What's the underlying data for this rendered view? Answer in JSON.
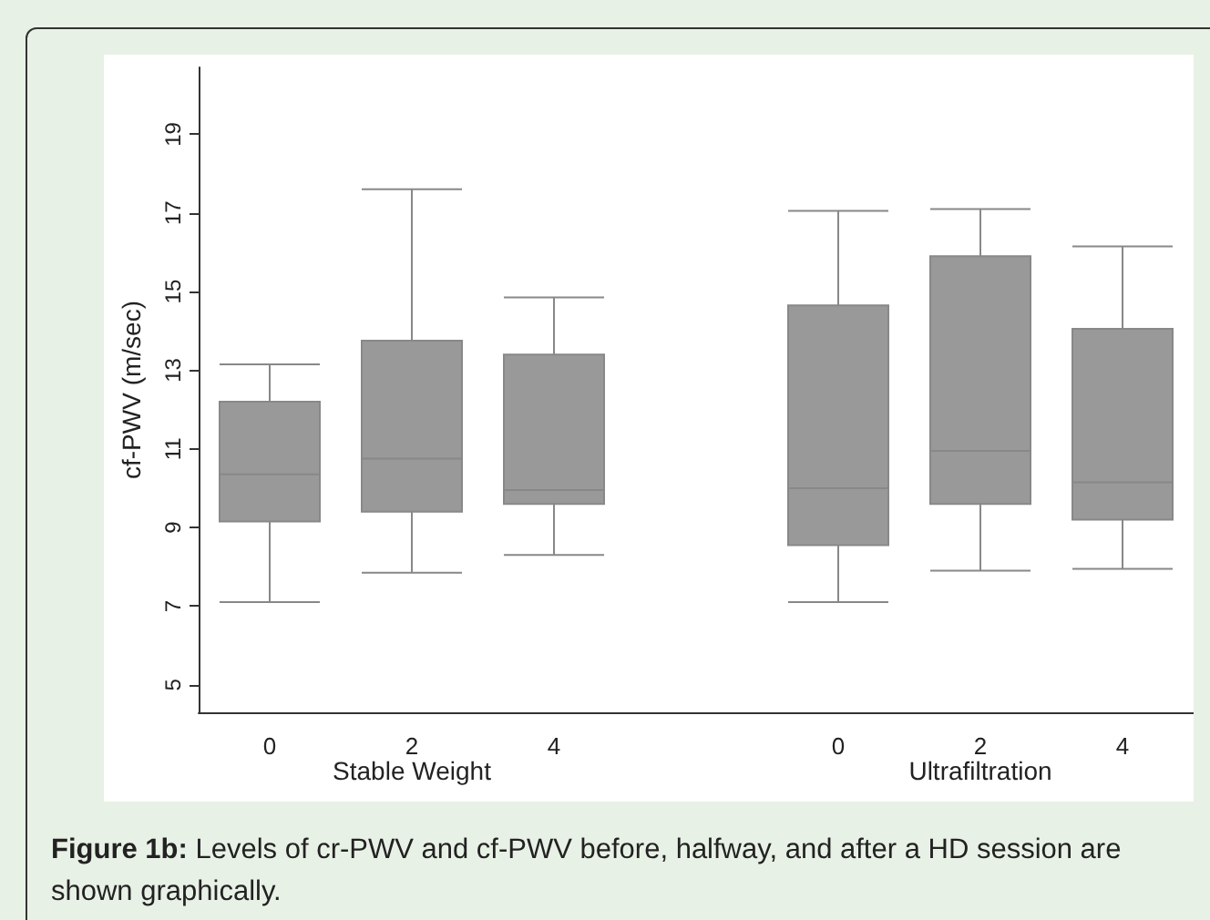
{
  "chart_data": {
    "type": "box",
    "ylabel": "cf-PWV (m/sec)",
    "categories": [
      "0",
      "2",
      "4",
      null,
      "0",
      "2",
      "4"
    ],
    "series": [
      {
        "color": "#999999",
        "boxes": [
          {
            "low": 7.1,
            "q1": 9.15,
            "median": 10.35,
            "q3": 12.2,
            "high": 13.15
          },
          {
            "low": 7.85,
            "q1": 9.4,
            "median": 10.75,
            "q3": 13.75,
            "high": 17.6
          },
          {
            "low": 8.3,
            "q1": 9.6,
            "median": 9.95,
            "q3": 13.4,
            "high": 14.85
          },
          null,
          {
            "low": 7.1,
            "q1": 8.55,
            "median": 10,
            "q3": 14.65,
            "high": 17.05
          },
          {
            "low": 7.9,
            "q1": 9.6,
            "median": 10.95,
            "q3": 15.9,
            "high": 17.1
          },
          {
            "low": 7.95,
            "q1": 9.2,
            "median": 10.15,
            "q3": 14.05,
            "high": 16.15
          }
        ]
      }
    ],
    "ylim": [
      4.3,
      20.7
    ],
    "yticks": [
      5,
      7,
      9,
      11,
      13,
      15,
      17,
      19
    ],
    "annotations": [
      "Stable Weight",
      "Ultrafiltration",
      "Figure 1b: Levels of cr-PWV and cf-PWV before, halfway, and after a HD session are shown graphically."
    ]
  }
}
